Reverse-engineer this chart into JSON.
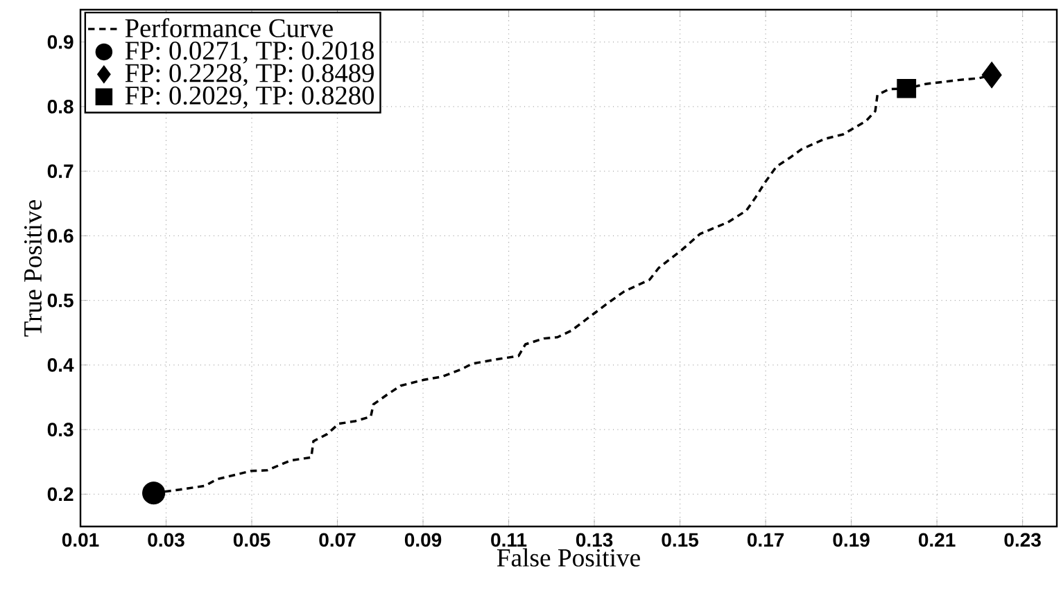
{
  "chart_data": {
    "type": "line",
    "xlabel": "False Positive",
    "ylabel": "True Positive",
    "xlim": [
      0.01,
      0.238
    ],
    "ylim": [
      0.15,
      0.95
    ],
    "xticks": [
      0.01,
      0.03,
      0.05,
      0.07,
      0.09,
      0.11,
      0.13,
      0.15,
      0.17,
      0.19,
      0.21,
      0.23
    ],
    "yticks": [
      0.2,
      0.3,
      0.4,
      0.5,
      0.6,
      0.7,
      0.8,
      0.9
    ],
    "grid": true,
    "legend": "top left",
    "series": [
      {
        "name": "Performance Curve",
        "color": "#000000",
        "line_style": "dashed",
        "marker": "none",
        "x": [
          0.0271,
          0.0332,
          0.0391,
          0.0418,
          0.0499,
          0.0536,
          0.059,
          0.0639,
          0.0644,
          0.0676,
          0.0703,
          0.0741,
          0.0778,
          0.0784,
          0.0816,
          0.0848,
          0.0902,
          0.0945,
          0.0988,
          0.1015,
          0.1074,
          0.1123,
          0.1139,
          0.1182,
          0.1214,
          0.1246,
          0.13,
          0.1332,
          0.137,
          0.1429,
          0.145,
          0.1504,
          0.1547,
          0.1612,
          0.1655,
          0.1677,
          0.1698,
          0.1725,
          0.1757,
          0.1784,
          0.1838,
          0.1881,
          0.1935,
          0.1956,
          0.1961,
          0.1988,
          0.2029,
          0.2074,
          0.2149,
          0.2198,
          0.2228
        ],
        "values": [
          0.2018,
          0.207,
          0.213,
          0.223,
          0.236,
          0.237,
          0.252,
          0.257,
          0.282,
          0.293,
          0.309,
          0.313,
          0.32,
          0.339,
          0.354,
          0.368,
          0.377,
          0.382,
          0.393,
          0.402,
          0.409,
          0.414,
          0.432,
          0.441,
          0.443,
          0.453,
          0.48,
          0.496,
          0.514,
          0.532,
          0.55,
          0.578,
          0.603,
          0.621,
          0.639,
          0.66,
          0.682,
          0.707,
          0.721,
          0.734,
          0.75,
          0.757,
          0.778,
          0.793,
          0.818,
          0.827,
          0.828,
          0.835,
          0.841,
          0.844,
          0.8489
        ]
      },
      {
        "name": "FP: 0.0271, TP: 0.2018",
        "type": "scatter",
        "color": "#000000",
        "marker": "circle",
        "x": [
          0.0271
        ],
        "values": [
          0.2018
        ]
      },
      {
        "name": "FP: 0.2228, TP: 0.8489",
        "type": "scatter",
        "color": "#000000",
        "marker": "diamond",
        "x": [
          0.2228
        ],
        "values": [
          0.8489
        ]
      },
      {
        "name": "FP: 0.2029, TP: 0.8280",
        "type": "scatter",
        "color": "#000000",
        "marker": "square",
        "x": [
          0.2029
        ],
        "values": [
          0.828
        ]
      }
    ]
  }
}
